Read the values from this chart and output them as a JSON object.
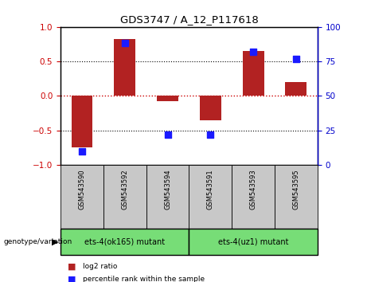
{
  "title": "GDS3747 / A_12_P117618",
  "samples": [
    "GSM543590",
    "GSM543592",
    "GSM543594",
    "GSM543591",
    "GSM543593",
    "GSM543595"
  ],
  "log2_ratio": [
    -0.75,
    0.82,
    -0.08,
    -0.35,
    0.65,
    0.2
  ],
  "percentile": [
    10,
    88,
    22,
    22,
    82,
    77
  ],
  "bar_color": "#b22222",
  "dot_color": "#1a1aff",
  "ylim_left": [
    -1,
    1
  ],
  "ylim_right": [
    0,
    100
  ],
  "yticks_left": [
    -1,
    -0.5,
    0,
    0.5,
    1
  ],
  "yticks_right": [
    0,
    25,
    50,
    75,
    100
  ],
  "group1_label": "ets-4(ok165) mutant",
  "group2_label": "ets-4(uz1) mutant",
  "group_color": "#77dd77",
  "group_label_text": "genotype/variation",
  "legend_items": [
    {
      "label": "log2 ratio",
      "color": "#b22222"
    },
    {
      "label": "percentile rank within the sample",
      "color": "#1a1aff"
    }
  ],
  "zero_line_color": "#cc0000",
  "dotted_line_color": "#000000",
  "bar_width": 0.5,
  "dot_size": 35,
  "sample_label_bg": "#c8c8c8",
  "left_tick_color": "#cc0000",
  "right_tick_color": "#0000cc"
}
